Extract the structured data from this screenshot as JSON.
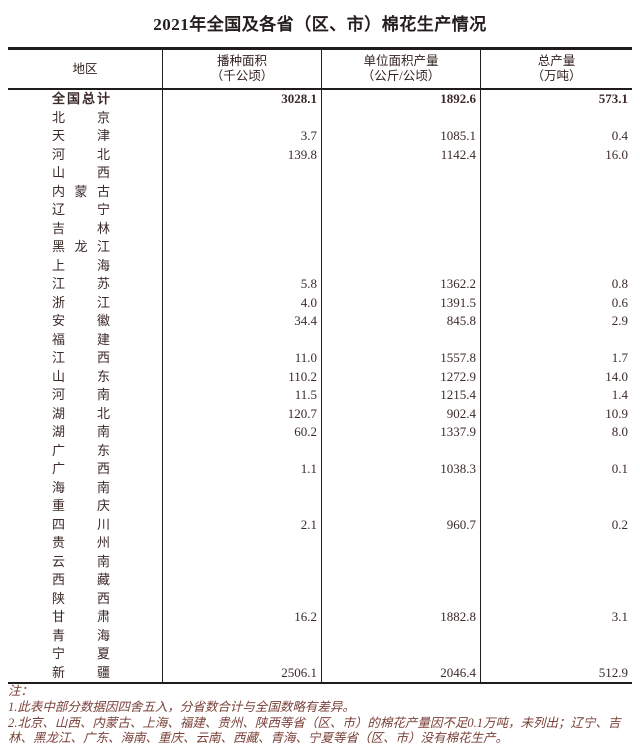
{
  "title": "2021年全国及各省（区、市）棉花生产情况",
  "table": {
    "columns": [
      {
        "label": "地区",
        "unit": ""
      },
      {
        "label": "播种面积",
        "unit": "（千公顷）"
      },
      {
        "label": "单位面积产量",
        "unit": "（公斤/公顷）"
      },
      {
        "label": "总产量",
        "unit": "（万吨）"
      }
    ],
    "rows": [
      {
        "region": "全国总计",
        "sown_area": "3028.1",
        "yield_per_area": "1892.6",
        "output": "573.1",
        "bold": true
      },
      {
        "region": "北京",
        "sown_area": "",
        "yield_per_area": "",
        "output": "",
        "bold": false
      },
      {
        "region": "天津",
        "sown_area": "3.7",
        "yield_per_area": "1085.1",
        "output": "0.4",
        "bold": false
      },
      {
        "region": "河北",
        "sown_area": "139.8",
        "yield_per_area": "1142.4",
        "output": "16.0",
        "bold": false
      },
      {
        "region": "山西",
        "sown_area": "",
        "yield_per_area": "",
        "output": "",
        "bold": false
      },
      {
        "region": "内蒙古",
        "sown_area": "",
        "yield_per_area": "",
        "output": "",
        "bold": false
      },
      {
        "region": "辽宁",
        "sown_area": "",
        "yield_per_area": "",
        "output": "",
        "bold": false
      },
      {
        "region": "吉林",
        "sown_area": "",
        "yield_per_area": "",
        "output": "",
        "bold": false
      },
      {
        "region": "黑龙江",
        "sown_area": "",
        "yield_per_area": "",
        "output": "",
        "bold": false
      },
      {
        "region": "上海",
        "sown_area": "",
        "yield_per_area": "",
        "output": "",
        "bold": false
      },
      {
        "region": "江苏",
        "sown_area": "5.8",
        "yield_per_area": "1362.2",
        "output": "0.8",
        "bold": false
      },
      {
        "region": "浙江",
        "sown_area": "4.0",
        "yield_per_area": "1391.5",
        "output": "0.6",
        "bold": false
      },
      {
        "region": "安徽",
        "sown_area": "34.4",
        "yield_per_area": "845.8",
        "output": "2.9",
        "bold": false
      },
      {
        "region": "福建",
        "sown_area": "",
        "yield_per_area": "",
        "output": "",
        "bold": false
      },
      {
        "region": "江西",
        "sown_area": "11.0",
        "yield_per_area": "1557.8",
        "output": "1.7",
        "bold": false
      },
      {
        "region": "山东",
        "sown_area": "110.2",
        "yield_per_area": "1272.9",
        "output": "14.0",
        "bold": false
      },
      {
        "region": "河南",
        "sown_area": "11.5",
        "yield_per_area": "1215.4",
        "output": "1.4",
        "bold": false
      },
      {
        "region": "湖北",
        "sown_area": "120.7",
        "yield_per_area": "902.4",
        "output": "10.9",
        "bold": false
      },
      {
        "region": "湖南",
        "sown_area": "60.2",
        "yield_per_area": "1337.9",
        "output": "8.0",
        "bold": false
      },
      {
        "region": "广东",
        "sown_area": "",
        "yield_per_area": "",
        "output": "",
        "bold": false
      },
      {
        "region": "广西",
        "sown_area": "1.1",
        "yield_per_area": "1038.3",
        "output": "0.1",
        "bold": false
      },
      {
        "region": "海南",
        "sown_area": "",
        "yield_per_area": "",
        "output": "",
        "bold": false
      },
      {
        "region": "重庆",
        "sown_area": "",
        "yield_per_area": "",
        "output": "",
        "bold": false
      },
      {
        "region": "四川",
        "sown_area": "2.1",
        "yield_per_area": "960.7",
        "output": "0.2",
        "bold": false
      },
      {
        "region": "贵州",
        "sown_area": "",
        "yield_per_area": "",
        "output": "",
        "bold": false
      },
      {
        "region": "云南",
        "sown_area": "",
        "yield_per_area": "",
        "output": "",
        "bold": false
      },
      {
        "region": "西藏",
        "sown_area": "",
        "yield_per_area": "",
        "output": "",
        "bold": false
      },
      {
        "region": "陕西",
        "sown_area": "",
        "yield_per_area": "",
        "output": "",
        "bold": false
      },
      {
        "region": "甘肃",
        "sown_area": "16.2",
        "yield_per_area": "1882.8",
        "output": "3.1",
        "bold": false
      },
      {
        "region": "青海",
        "sown_area": "",
        "yield_per_area": "",
        "output": "",
        "bold": false
      },
      {
        "region": "宁夏",
        "sown_area": "",
        "yield_per_area": "",
        "output": "",
        "bold": false
      },
      {
        "region": "新疆",
        "sown_area": "2506.1",
        "yield_per_area": "2046.4",
        "output": "512.9",
        "bold": false
      }
    ]
  },
  "notes": {
    "label": "注：",
    "items": [
      "1.此表中部分数据因四舍五入，分省数合计与全国数略有差异。",
      "2.北京、山西、内蒙古、上海、福建、贵州、陕西等省（区、市）的棉花产量因不足0.1万吨，未列出；辽宁、吉林、黑龙江、广东、海南、重庆、云南、西藏、青海、宁夏等省（区、市）没有棉花生产。"
    ]
  },
  "colors": {
    "border": "#211c1c",
    "title_text": "#241d1d",
    "table_text": "#3b2a28",
    "notes_text": "#7a4038",
    "background": "#ffffff"
  }
}
